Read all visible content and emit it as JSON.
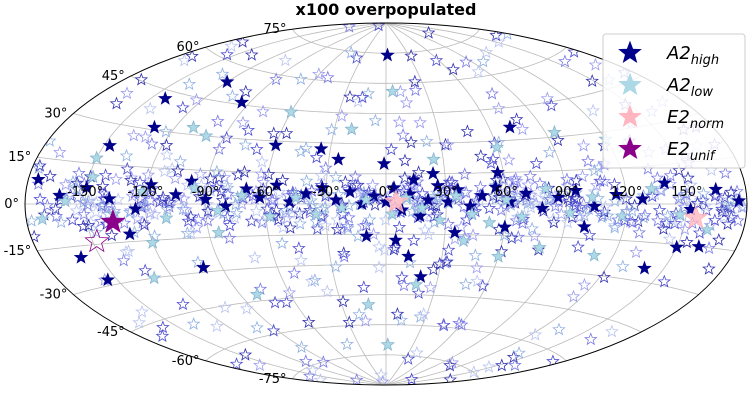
{
  "chart_data": {
    "type": "scatter",
    "title": "x100 overpopulated",
    "projection": "aitoff",
    "grid": true,
    "legend_position": "top-right",
    "xlabel": "",
    "ylabel": "",
    "longitude_ticks": [
      "-150°",
      "-120°",
      "-90°",
      "-60°",
      "-30°",
      "0°",
      "30°",
      "60°",
      "90°",
      "120°",
      "150°"
    ],
    "latitude_ticks": [
      "75°",
      "60°",
      "45°",
      "30°",
      "15°",
      "0°",
      "-15°",
      "-30°",
      "-45°",
      "-60°",
      "-75°"
    ],
    "marker": "star",
    "background_markers": {
      "style": "hollow stars in blue and lavender shades",
      "note_color": "#6a6ad0"
    },
    "series": [
      {
        "name": "A2_high",
        "legend_main": "A2",
        "legend_sub": "high",
        "color": "#00008b",
        "filled": true,
        "points": [
          [
            -175,
            8
          ],
          [
            -163,
            3
          ],
          [
            -150,
            6
          ],
          [
            -138,
            2
          ],
          [
            -125,
            -2
          ],
          [
            -118,
            8
          ],
          [
            -105,
            4
          ],
          [
            -98,
            10
          ],
          [
            -90,
            2
          ],
          [
            -80,
            -1
          ],
          [
            -70,
            7
          ],
          [
            -63,
            3
          ],
          [
            -55,
            9
          ],
          [
            -48,
            1
          ],
          [
            -40,
            5
          ],
          [
            -32,
            8
          ],
          [
            -25,
            2
          ],
          [
            -18,
            6
          ],
          [
            -12,
            0
          ],
          [
            -6,
            4
          ],
          [
            0,
            1
          ],
          [
            4,
            8
          ],
          [
            8,
            -3
          ],
          [
            12,
            5
          ],
          [
            17,
            -6
          ],
          [
            21,
            2
          ],
          [
            26,
            9
          ],
          [
            31,
            1
          ],
          [
            36,
            7
          ],
          [
            42,
            -1
          ],
          [
            48,
            4
          ],
          [
            55,
            8
          ],
          [
            62,
            1
          ],
          [
            70,
            5
          ],
          [
            78,
            -2
          ],
          [
            86,
            3
          ],
          [
            95,
            6
          ],
          [
            104,
            -1
          ],
          [
            115,
            4
          ],
          [
            128,
            2
          ],
          [
            140,
            8
          ],
          [
            152,
            -2
          ],
          [
            165,
            5
          ],
          [
            176,
            1
          ],
          [
            -147,
            22
          ],
          [
            -131,
            31
          ],
          [
            -120,
            53
          ],
          [
            -95,
            46
          ],
          [
            -60,
            28
          ],
          [
            -35,
            27
          ],
          [
            -25,
            22
          ],
          [
            14,
            12
          ],
          [
            57,
            15
          ],
          [
            35,
            -14
          ],
          [
            12,
            -26
          ],
          [
            20,
            -36
          ],
          [
            60,
            -11
          ],
          [
            150,
            -16
          ],
          [
            161,
            -15
          ],
          [
            140,
            -25
          ],
          [
            100,
            -10
          ],
          [
            -100,
            -28
          ],
          [
            -155,
            -28
          ],
          [
            -130,
            -12
          ],
          [
            -160,
            -19
          ],
          [
            -142,
            42
          ],
          [
            72,
            36
          ],
          [
            -10,
            -16
          ],
          [
            5,
            -18
          ],
          [
            2,
            74
          ],
          [
            -1,
            20
          ],
          [
            24,
            15
          ]
        ]
      },
      {
        "name": "A2_low",
        "legend_main": "A2",
        "legend_sub": "low",
        "color": "#add8e6",
        "filled": true,
        "points": [
          [
            -172,
            -5
          ],
          [
            -160,
            1
          ],
          [
            -148,
            10
          ],
          [
            -136,
            -4
          ],
          [
            -122,
            5
          ],
          [
            -110,
            -6
          ],
          [
            -96,
            7
          ],
          [
            -84,
            -3
          ],
          [
            -72,
            4
          ],
          [
            -58,
            -6
          ],
          [
            -45,
            3
          ],
          [
            -35,
            -5
          ],
          [
            -22,
            -2
          ],
          [
            -10,
            2
          ],
          [
            3,
            -5
          ],
          [
            10,
            3
          ],
          [
            18,
            -2
          ],
          [
            27,
            -8
          ],
          [
            35,
            4
          ],
          [
            43,
            -5
          ],
          [
            52,
            -9
          ],
          [
            60,
            2
          ],
          [
            68,
            -6
          ],
          [
            80,
            7
          ],
          [
            92,
            -4
          ],
          [
            103,
            3
          ],
          [
            118,
            -5
          ],
          [
            133,
            6
          ],
          [
            147,
            -4
          ],
          [
            162,
            -9
          ],
          [
            -85,
            -13
          ],
          [
            -120,
            -16
          ],
          [
            40,
            -18
          ],
          [
            60,
            -25
          ],
          [
            80,
            -20
          ],
          [
            110,
            -22
          ],
          [
            -150,
            17
          ],
          [
            -110,
            33
          ],
          [
            -100,
            30
          ],
          [
            -60,
            44
          ],
          [
            -20,
            37
          ],
          [
            25,
            22
          ],
          [
            60,
            27
          ],
          [
            95,
            32
          ],
          [
            120,
            27
          ],
          [
            -130,
            -30
          ],
          [
            -80,
            -42
          ],
          [
            2,
            -70
          ],
          [
            -12,
            -50
          ],
          [
            18,
            -40
          ],
          [
            5,
            56
          ]
        ]
      },
      {
        "name": "E2_norm",
        "legend_main": "E2",
        "legend_sub": "norm",
        "color": "#ffb6c1",
        "filled": true,
        "points": [
          [
            155,
            -5
          ],
          [
            5,
            1
          ]
        ]
      },
      {
        "name": "E2_unif",
        "legend_main": "E2",
        "legend_sub": "unif",
        "color": "#8b008b",
        "filled": true,
        "points": [
          [
            -137,
            -7
          ],
          [
            -148,
            -14
          ]
        ]
      }
    ]
  }
}
